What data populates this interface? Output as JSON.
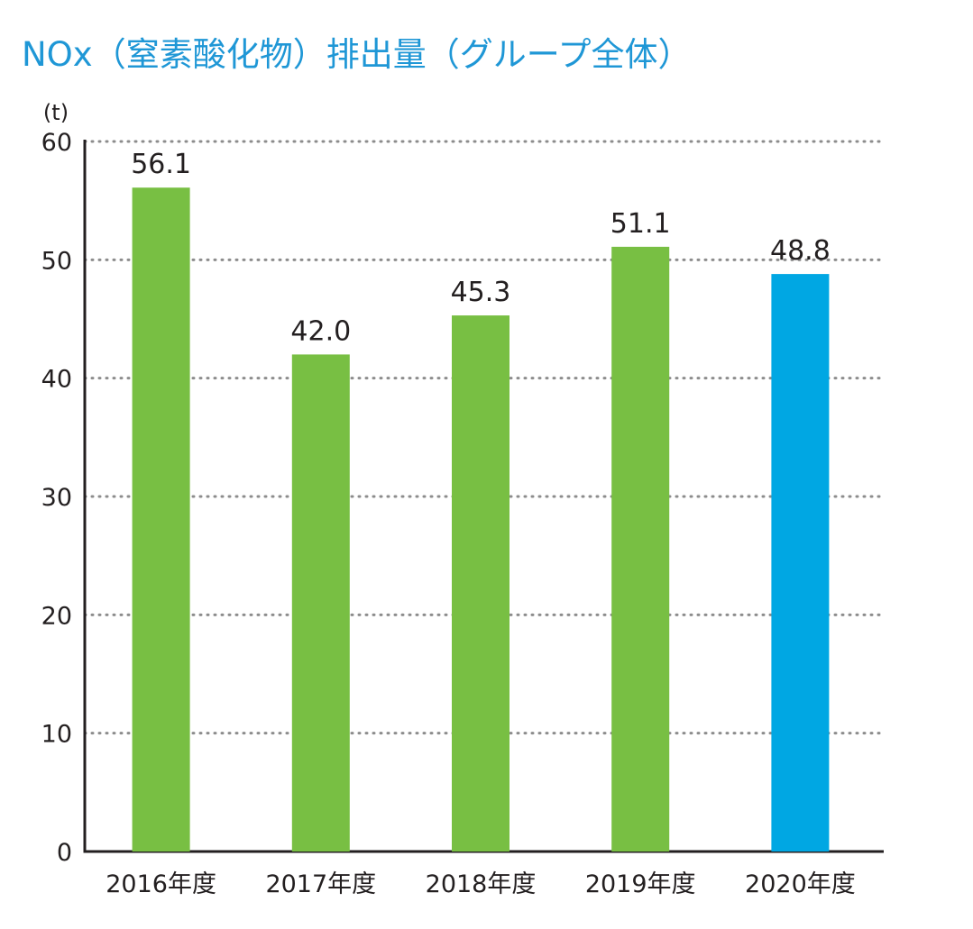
{
  "title": "NOx（窒素酸化物）排出量（グループ全体）",
  "colors": {
    "title": "#1f97d6",
    "bar_default": "#78bf43",
    "bar_highlight": "#00a7e3",
    "label_default": "#231f20",
    "label_highlight": "#1a4f9c",
    "grid": "#8c8c8c",
    "axis": "#231f20"
  },
  "chart_data": {
    "type": "bar",
    "title": "NOx（窒素酸化物）排出量（グループ全体）",
    "unit_label": "(t)",
    "categories": [
      "2016年度",
      "2017年度",
      "2018年度",
      "2019年度",
      "2020年度"
    ],
    "values": [
      56.1,
      42.0,
      45.3,
      51.1,
      48.8
    ],
    "value_labels": [
      "56.1",
      "42.0",
      "45.3",
      "51.1",
      "48.8"
    ],
    "highlight_index": 4,
    "ylim": [
      0,
      60
    ],
    "yticks": [
      0,
      10,
      20,
      30,
      40,
      50,
      60
    ],
    "grid": "horizontal dotted",
    "xlabel": "",
    "ylabel": ""
  }
}
